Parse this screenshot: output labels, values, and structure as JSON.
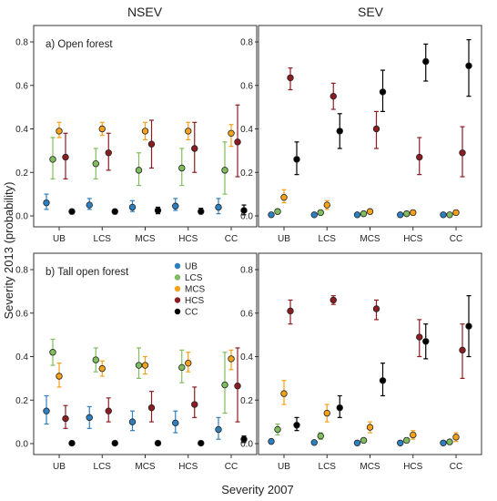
{
  "column_titles": [
    "NSEV",
    "SEV"
  ],
  "xlabel": "Severity 2007",
  "ylabel": "Severity 2013 (probability)",
  "chart_data": [
    {
      "type": "scatter",
      "panel": "top-left",
      "title": "a) Open forest",
      "column": "NSEV",
      "categories": [
        "UB",
        "LCS",
        "MCS",
        "HCS",
        "CC"
      ],
      "ylim": [
        0,
        0.85
      ],
      "yticks": [
        "0.0",
        "0.2",
        "0.4",
        "0.6",
        "0.8"
      ],
      "series": [
        {
          "name": "UB",
          "color": "#2e7fc0",
          "values": [
            0.06,
            0.05,
            0.04,
            0.045,
            0.04
          ],
          "lower": [
            0.03,
            0.03,
            0.02,
            0.025,
            0.01
          ],
          "upper": [
            0.1,
            0.08,
            0.07,
            0.08,
            0.08
          ]
        },
        {
          "name": "LCS",
          "color": "#7fbd5e",
          "values": [
            0.26,
            0.24,
            0.21,
            0.22,
            0.21
          ],
          "lower": [
            0.17,
            0.17,
            0.14,
            0.14,
            0.1
          ],
          "upper": [
            0.36,
            0.31,
            0.29,
            0.31,
            0.34
          ]
        },
        {
          "name": "MCS",
          "color": "#f5a11c",
          "values": [
            0.39,
            0.4,
            0.39,
            0.39,
            0.38
          ],
          "lower": [
            0.36,
            0.37,
            0.35,
            0.35,
            0.32
          ],
          "upper": [
            0.43,
            0.43,
            0.43,
            0.43,
            0.42
          ]
        },
        {
          "name": "HCS",
          "color": "#8b1c21",
          "values": [
            0.27,
            0.29,
            0.33,
            0.31,
            0.34
          ],
          "lower": [
            0.17,
            0.21,
            0.22,
            0.2,
            0.18
          ],
          "upper": [
            0.38,
            0.38,
            0.44,
            0.43,
            0.51
          ]
        },
        {
          "name": "CC",
          "color": "#000000",
          "values": [
            0.02,
            0.02,
            0.025,
            0.02,
            0.025
          ],
          "lower": [
            0.01,
            0.01,
            0.01,
            0.01,
            0.005
          ],
          "upper": [
            0.03,
            0.03,
            0.04,
            0.035,
            0.05
          ]
        }
      ]
    },
    {
      "type": "scatter",
      "panel": "top-right",
      "title": "",
      "column": "SEV",
      "categories": [
        "UB",
        "LCS",
        "MCS",
        "HCS",
        "CC"
      ],
      "ylim": [
        0,
        0.85
      ],
      "yticks": [
        "0.0",
        "0.2",
        "0.4",
        "0.6",
        "0.8"
      ],
      "series": [
        {
          "name": "UB",
          "color": "#2e7fc0",
          "values": [
            0.005,
            0.005,
            0.005,
            0.005,
            0.005
          ],
          "lower": [
            0,
            0,
            0,
            0,
            0
          ],
          "upper": [
            0.01,
            0.01,
            0.01,
            0.01,
            0.01
          ]
        },
        {
          "name": "LCS",
          "color": "#7fbd5e",
          "values": [
            0.02,
            0.015,
            0.01,
            0.01,
            0.005
          ],
          "lower": [
            0.01,
            0.005,
            0.005,
            0.005,
            0
          ],
          "upper": [
            0.03,
            0.025,
            0.015,
            0.015,
            0.01
          ]
        },
        {
          "name": "MCS",
          "color": "#f5a11c",
          "values": [
            0.085,
            0.05,
            0.02,
            0.015,
            0.015
          ],
          "lower": [
            0.06,
            0.03,
            0.01,
            0.005,
            0.005
          ],
          "upper": [
            0.12,
            0.07,
            0.03,
            0.025,
            0.025
          ]
        },
        {
          "name": "HCS",
          "color": "#8b1c21",
          "values": [
            0.635,
            0.55,
            0.4,
            0.27,
            0.29
          ],
          "lower": [
            0.58,
            0.49,
            0.31,
            0.19,
            0.18
          ],
          "upper": [
            0.68,
            0.61,
            0.48,
            0.36,
            0.41
          ]
        },
        {
          "name": "CC",
          "color": "#000000",
          "values": [
            0.26,
            0.39,
            0.57,
            0.71,
            0.69
          ],
          "lower": [
            0.19,
            0.31,
            0.48,
            0.62,
            0.55
          ],
          "upper": [
            0.34,
            0.47,
            0.67,
            0.79,
            0.81
          ]
        }
      ]
    },
    {
      "type": "scatter",
      "panel": "bottom-left",
      "title": "b) Tall open forest",
      "column": "NSEV",
      "categories": [
        "UB",
        "LCS",
        "MCS",
        "HCS",
        "CC"
      ],
      "ylim": [
        0,
        0.85
      ],
      "yticks": [
        "0.0",
        "0.2",
        "0.4",
        "0.6",
        "0.8"
      ],
      "legend": {
        "placement": "top-right",
        "labels": [
          "UB",
          "LCS",
          "MCS",
          "HCS",
          "CC"
        ]
      },
      "series": [
        {
          "name": "UB",
          "color": "#2e7fc0",
          "values": [
            0.15,
            0.12,
            0.1,
            0.095,
            0.065
          ],
          "lower": [
            0.09,
            0.07,
            0.06,
            0.05,
            0.02
          ],
          "upper": [
            0.22,
            0.17,
            0.15,
            0.15,
            0.12
          ]
        },
        {
          "name": "LCS",
          "color": "#7fbd5e",
          "values": [
            0.42,
            0.385,
            0.36,
            0.35,
            0.27
          ],
          "lower": [
            0.36,
            0.33,
            0.3,
            0.28,
            0.14
          ],
          "upper": [
            0.48,
            0.44,
            0.44,
            0.43,
            0.42
          ]
        },
        {
          "name": "MCS",
          "color": "#f5a11c",
          "values": [
            0.31,
            0.345,
            0.36,
            0.37,
            0.39
          ],
          "lower": [
            0.26,
            0.31,
            0.32,
            0.33,
            0.34
          ],
          "upper": [
            0.37,
            0.38,
            0.4,
            0.42,
            0.43
          ]
        },
        {
          "name": "HCS",
          "color": "#8b1c21",
          "values": [
            0.115,
            0.15,
            0.165,
            0.18,
            0.265
          ],
          "lower": [
            0.07,
            0.1,
            0.1,
            0.12,
            0.1
          ],
          "upper": [
            0.175,
            0.21,
            0.24,
            0.26,
            0.44
          ]
        },
        {
          "name": "CC",
          "color": "#000000",
          "values": [
            0.002,
            0.002,
            0.002,
            0.002,
            0.02
          ],
          "lower": [
            0,
            0,
            0,
            0,
            0.005
          ],
          "upper": [
            0.005,
            0.005,
            0.005,
            0.005,
            0.035
          ]
        }
      ]
    },
    {
      "type": "scatter",
      "panel": "bottom-right",
      "title": "",
      "column": "SEV",
      "categories": [
        "UB",
        "LCS",
        "MCS",
        "HCS",
        "CC"
      ],
      "ylim": [
        0,
        0.85
      ],
      "yticks": [
        "0.0",
        "0.2",
        "0.4",
        "0.6",
        "0.8"
      ],
      "series": [
        {
          "name": "UB",
          "color": "#2e7fc0",
          "values": [
            0.01,
            0.005,
            0.003,
            0.003,
            0.003
          ],
          "lower": [
            0.005,
            0,
            0,
            0,
            0
          ],
          "upper": [
            0.015,
            0.01,
            0.008,
            0.008,
            0.008
          ]
        },
        {
          "name": "LCS",
          "color": "#7fbd5e",
          "values": [
            0.065,
            0.035,
            0.015,
            0.015,
            0.008
          ],
          "lower": [
            0.04,
            0.02,
            0.005,
            0.005,
            0
          ],
          "upper": [
            0.09,
            0.05,
            0.025,
            0.025,
            0.015
          ]
        },
        {
          "name": "MCS",
          "color": "#f5a11c",
          "values": [
            0.23,
            0.14,
            0.075,
            0.04,
            0.03
          ],
          "lower": [
            0.18,
            0.1,
            0.05,
            0.02,
            0.01
          ],
          "upper": [
            0.29,
            0.18,
            0.1,
            0.06,
            0.05
          ]
        },
        {
          "name": "HCS",
          "color": "#8b1c21",
          "values": [
            0.61,
            0.66,
            0.62,
            0.49,
            0.43
          ],
          "lower": [
            0.55,
            0.64,
            0.57,
            0.4,
            0.3
          ],
          "upper": [
            0.66,
            0.68,
            0.66,
            0.57,
            0.55
          ]
        },
        {
          "name": "CC",
          "color": "#000000",
          "values": [
            0.085,
            0.165,
            0.29,
            0.47,
            0.54
          ],
          "lower": [
            0.06,
            0.12,
            0.22,
            0.39,
            0.4
          ],
          "upper": [
            0.12,
            0.22,
            0.37,
            0.55,
            0.68
          ]
        }
      ]
    }
  ]
}
